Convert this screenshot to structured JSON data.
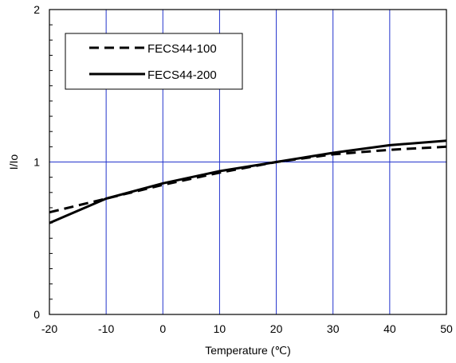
{
  "chart_data": {
    "type": "line",
    "xlabel": "Temperature (℃)",
    "ylabel": "I/Io",
    "xlim": [
      -20,
      50
    ],
    "ylim": [
      0,
      2
    ],
    "x_ticks": [
      "-20",
      "-10",
      "0",
      "10",
      "20",
      "30",
      "40",
      "50"
    ],
    "y_ticks": [
      "0",
      "1",
      "2"
    ],
    "grid": true,
    "legend_position": "top-left",
    "colors": {
      "grid": "#2233cc",
      "axis": "#000000",
      "series": "#000000"
    },
    "series": [
      {
        "name": "FECS44-100",
        "style": "dashed",
        "x": [
          -20,
          -10,
          0,
          10,
          20,
          30,
          40,
          50
        ],
        "y": [
          0.67,
          0.76,
          0.85,
          0.93,
          1.0,
          1.05,
          1.08,
          1.1
        ]
      },
      {
        "name": "FECS44-200",
        "style": "solid",
        "x": [
          -20,
          -10,
          0,
          10,
          20,
          30,
          40,
          50
        ],
        "y": [
          0.6,
          0.76,
          0.86,
          0.94,
          1.0,
          1.06,
          1.11,
          1.14
        ]
      }
    ]
  }
}
